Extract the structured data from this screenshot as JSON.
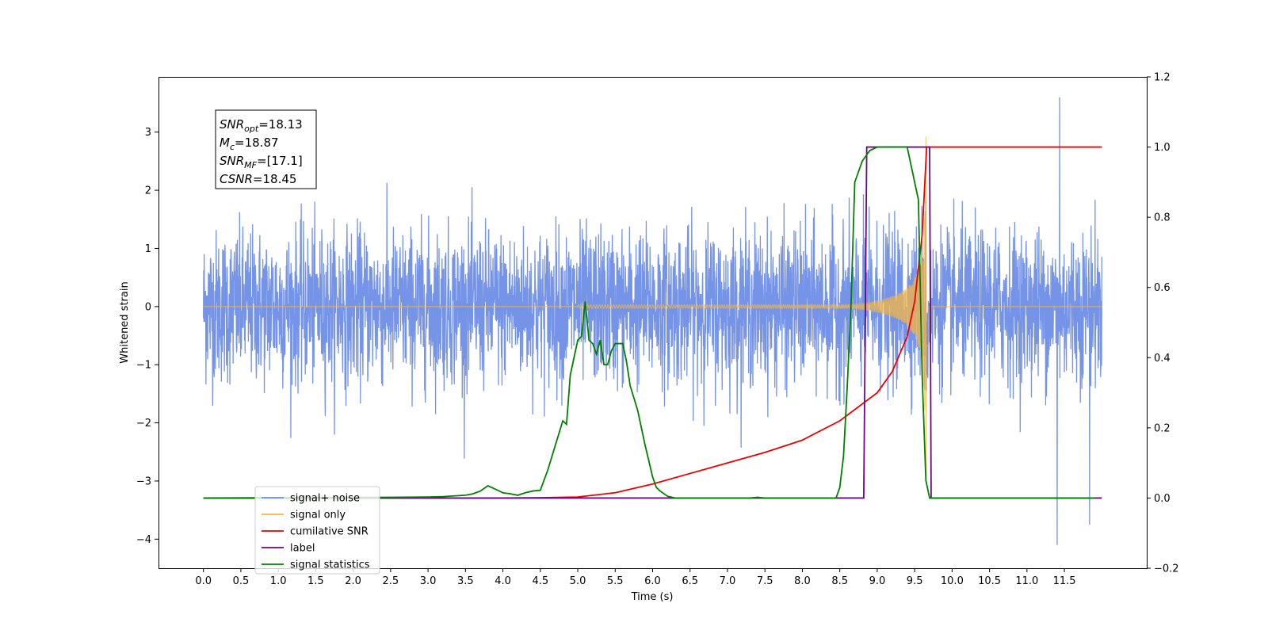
{
  "chart_data": {
    "type": "line",
    "xlabel": "Time (s)",
    "ylabel_left": "Whitened strain",
    "xlim": [
      -0.6,
      12.6
    ],
    "ylim_left": [
      -4.5,
      3.95
    ],
    "ylim_right": [
      -0.2,
      1.2
    ],
    "x_ticks": [
      0.0,
      0.5,
      1.0,
      1.5,
      2.0,
      2.5,
      3.0,
      3.5,
      4.0,
      4.5,
      5.0,
      5.5,
      6.0,
      6.5,
      7.0,
      7.5,
      8.0,
      8.5,
      9.0,
      9.5,
      10.0,
      10.5,
      11.0,
      11.5
    ],
    "x_tick_labels": [
      "0.0",
      "0.5",
      "1.0",
      "1.5",
      "2.0",
      "2.5",
      "3.0",
      "3.5",
      "4.0",
      "4.5",
      "5.0",
      "5.5",
      "6.0",
      "6.5",
      "7.0",
      "7.5",
      "8.0",
      "8.5",
      "9.0",
      "9.5",
      "10.0",
      "10.5",
      "11.0",
      "11.5"
    ],
    "y_ticks_left": [
      -4,
      -3,
      -2,
      -1,
      0,
      1,
      2,
      3
    ],
    "y_tick_labels_left": [
      "−4",
      "−3",
      "−2",
      "−1",
      "0",
      "1",
      "2",
      "3"
    ],
    "y_ticks_right": [
      -0.2,
      0.0,
      0.2,
      0.4,
      0.6,
      0.8,
      1.0,
      1.2
    ],
    "y_tick_labels_right": [
      "−0.2",
      "0.0",
      "0.2",
      "0.4",
      "0.6",
      "0.8",
      "1.0",
      "1.2"
    ],
    "info_box": [
      {
        "base": "SNR",
        "sub": "opt",
        "value": "=18.13"
      },
      {
        "base": "M",
        "sub": "c",
        "value": "=18.87"
      },
      {
        "base": "SNR",
        "sub": "MF",
        "value": "=[17.1]"
      },
      {
        "base": "CSNR",
        "sub": "",
        "value": "=18.45"
      }
    ],
    "legend_position": "lower-left",
    "legend": [
      {
        "label": "signal+ noise",
        "color": "#6f8ee6"
      },
      {
        "label": "signal only",
        "color": "#f5b544"
      },
      {
        "label": "cumilative SNR",
        "color": "#ee0000"
      },
      {
        "label": "label",
        "color": "#6a0a7a"
      },
      {
        "label": "signal statistics",
        "color": "#008000"
      }
    ],
    "series": [
      {
        "name": "signal+ noise",
        "axis": "left",
        "color": "#6f8ee6",
        "description_values": {
          "t_start": 0.0,
          "t_end": 12.0,
          "noise_std": 0.65,
          "min": -4.1,
          "max": 3.6
        }
      },
      {
        "name": "signal only",
        "axis": "left",
        "color": "#f5b544",
        "chirp": {
          "t_start": 5.0,
          "t_merge": 9.66,
          "peak_amplitude": 3.2,
          "amplitude_at_start": 0.03
        }
      },
      {
        "name": "cumilative SNR",
        "axis": "right",
        "color": "#ee0000",
        "x": [
          0.0,
          4.0,
          4.5,
          5.0,
          5.5,
          6.0,
          6.5,
          7.0,
          7.5,
          8.0,
          8.5,
          9.0,
          9.2,
          9.4,
          9.5,
          9.6,
          9.66,
          9.7,
          12.0
        ],
        "y": [
          0.0,
          0.0,
          0.001,
          0.003,
          0.015,
          0.04,
          0.07,
          0.1,
          0.13,
          0.165,
          0.22,
          0.3,
          0.36,
          0.46,
          0.56,
          0.75,
          1.0,
          1.0,
          1.0
        ]
      },
      {
        "name": "label",
        "axis": "right",
        "color": "#6a0a7a",
        "x": [
          0.0,
          8.82,
          8.86,
          9.7,
          9.72,
          12.0
        ],
        "y": [
          0.0,
          0.0,
          1.0,
          1.0,
          0.0,
          0.0
        ]
      },
      {
        "name": "signal statistics",
        "axis": "right",
        "color": "#008000",
        "x": [
          0.0,
          2.5,
          3.0,
          3.2,
          3.5,
          3.6,
          3.7,
          3.8,
          3.9,
          4.0,
          4.1,
          4.2,
          4.3,
          4.4,
          4.5,
          4.6,
          4.7,
          4.8,
          4.85,
          4.9,
          5.0,
          5.05,
          5.1,
          5.15,
          5.2,
          5.25,
          5.3,
          5.35,
          5.4,
          5.45,
          5.5,
          5.55,
          5.6,
          5.65,
          5.7,
          5.8,
          5.9,
          6.0,
          6.05,
          6.1,
          6.2,
          6.3,
          6.5,
          7.0,
          7.3,
          7.4,
          7.5,
          8.0,
          8.45,
          8.5,
          8.55,
          8.6,
          8.65,
          8.7,
          8.8,
          8.9,
          9.0,
          9.1,
          9.2,
          9.3,
          9.4,
          9.55,
          9.6,
          9.65,
          9.7,
          9.75,
          11.9
        ],
        "y": [
          0.0,
          0.002,
          0.003,
          0.004,
          0.008,
          0.012,
          0.02,
          0.035,
          0.025,
          0.015,
          0.012,
          0.008,
          0.015,
          0.02,
          0.022,
          0.08,
          0.15,
          0.22,
          0.21,
          0.35,
          0.45,
          0.46,
          0.56,
          0.45,
          0.44,
          0.41,
          0.45,
          0.38,
          0.38,
          0.42,
          0.44,
          0.44,
          0.44,
          0.39,
          0.32,
          0.25,
          0.15,
          0.06,
          0.03,
          0.02,
          0.005,
          0.0,
          0.0,
          0.0,
          0.0,
          0.002,
          0.0,
          0.0,
          0.0,
          0.03,
          0.12,
          0.32,
          0.55,
          0.9,
          0.96,
          0.99,
          1.0,
          1.0,
          1.0,
          1.0,
          1.0,
          0.85,
          0.35,
          0.05,
          0.0,
          0.0,
          0.0
        ]
      }
    ]
  }
}
